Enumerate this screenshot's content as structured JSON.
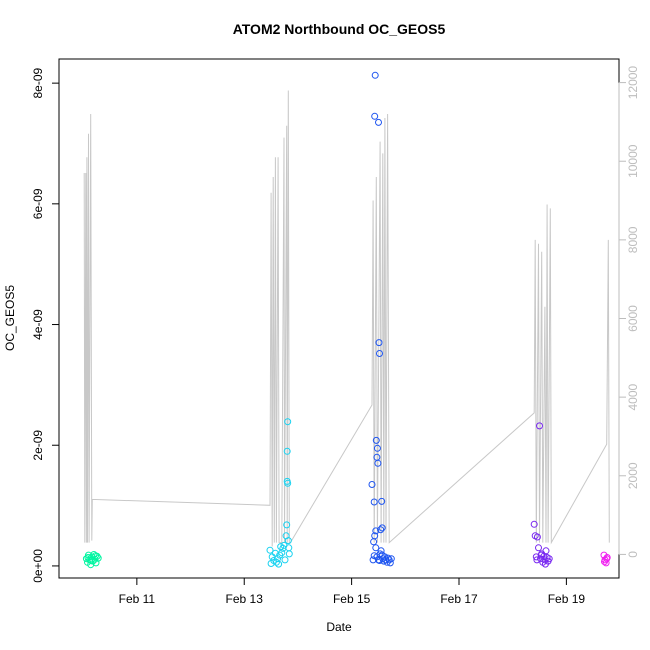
{
  "chart_data": {
    "type": "scatter",
    "title": "ATOM2 Northbound OC_GEOS5",
    "xlabel": "Date",
    "ylabel": "OC_GEOS5",
    "xlim": [
      9.55,
      19.98
    ],
    "ylim": [
      -2e-10,
      8.4e-09
    ],
    "y2lim": [
      -600,
      12600
    ],
    "x_ticks": [
      {
        "value": 11,
        "label": "Feb 11"
      },
      {
        "value": 13,
        "label": "Feb 13"
      },
      {
        "value": 15,
        "label": "Feb 15"
      },
      {
        "value": 17,
        "label": "Feb 17"
      },
      {
        "value": 19,
        "label": "Feb 19"
      }
    ],
    "y_ticks": [
      {
        "value": 0,
        "label": "0e+00"
      },
      {
        "value": 2e-09,
        "label": "2e-09"
      },
      {
        "value": 4e-09,
        "label": "4e-09"
      },
      {
        "value": 6e-09,
        "label": "6e-09"
      },
      {
        "value": 8e-09,
        "label": "8e-09"
      }
    ],
    "y2_ticks": [
      {
        "value": 0,
        "label": "0"
      },
      {
        "value": 2000,
        "label": "2000"
      },
      {
        "value": 4000,
        "label": "4000"
      },
      {
        "value": 6000,
        "label": "6000"
      },
      {
        "value": 8000,
        "label": "8000"
      },
      {
        "value": 10000,
        "label": "10000"
      },
      {
        "value": 12000,
        "label": "12000"
      }
    ],
    "colors": {
      "altitude_line": "#c8c8c8",
      "axis": "#000000",
      "right_axis": "#bdbdbd"
    },
    "points": [
      {
        "x": 10.06,
        "y": 1.2e-10,
        "c": "#00f5a0"
      },
      {
        "x": 10.08,
        "y": 6e-11,
        "c": "#00f5a0"
      },
      {
        "x": 10.1,
        "y": 1.8e-10,
        "c": "#00f5a0"
      },
      {
        "x": 10.12,
        "y": 1e-10,
        "c": "#00f5a0"
      },
      {
        "x": 10.14,
        "y": 2e-11,
        "c": "#00f5a0"
      },
      {
        "x": 10.16,
        "y": 1.5e-10,
        "c": "#00f5a0"
      },
      {
        "x": 10.18,
        "y": 8e-11,
        "c": "#00f5a0"
      },
      {
        "x": 10.2,
        "y": 1.9e-10,
        "c": "#00f5a0"
      },
      {
        "x": 10.22,
        "y": 1.1e-10,
        "c": "#00f5a0"
      },
      {
        "x": 10.24,
        "y": 5e-11,
        "c": "#00f5a0"
      },
      {
        "x": 10.26,
        "y": 1.6e-10,
        "c": "#00f5a0"
      },
      {
        "x": 10.28,
        "y": 1.3e-10,
        "c": "#00f5a0"
      },
      {
        "x": 10.09,
        "y": 1.4e-10,
        "c": "#00f5a0"
      },
      {
        "x": 10.15,
        "y": 9e-11,
        "c": "#00f5a0"
      },
      {
        "x": 10.23,
        "y": 1.7e-10,
        "c": "#00f5a0"
      },
      {
        "x": 13.48,
        "y": 2.6e-10,
        "c": "#19d2f0"
      },
      {
        "x": 13.5,
        "y": 4e-11,
        "c": "#19d2f0"
      },
      {
        "x": 13.52,
        "y": 1.5e-10,
        "c": "#19d2f0"
      },
      {
        "x": 13.55,
        "y": 9e-11,
        "c": "#19d2f0"
      },
      {
        "x": 13.58,
        "y": 2.1e-10,
        "c": "#19d2f0"
      },
      {
        "x": 13.6,
        "y": 6e-11,
        "c": "#19d2f0"
      },
      {
        "x": 13.62,
        "y": 1.2e-10,
        "c": "#19d2f0"
      },
      {
        "x": 13.64,
        "y": 3e-11,
        "c": "#19d2f0"
      },
      {
        "x": 13.66,
        "y": 1.8e-10,
        "c": "#19d2f0"
      },
      {
        "x": 13.68,
        "y": 3.2e-10,
        "c": "#19d2f0"
      },
      {
        "x": 13.7,
        "y": 2.2e-10,
        "c": "#19d2f0"
      },
      {
        "x": 13.72,
        "y": 2.9e-10,
        "c": "#19d2f0"
      },
      {
        "x": 13.74,
        "y": 3.4e-10,
        "c": "#19d2f0"
      },
      {
        "x": 13.76,
        "y": 1e-10,
        "c": "#19d2f0"
      },
      {
        "x": 13.78,
        "y": 5e-10,
        "c": "#19d2f0"
      },
      {
        "x": 13.79,
        "y": 6.8e-10,
        "c": "#19d2f0"
      },
      {
        "x": 13.8,
        "y": 1.4e-09,
        "c": "#19d2f0"
      },
      {
        "x": 13.81,
        "y": 1.37e-09,
        "c": "#19d2f0"
      },
      {
        "x": 13.8,
        "y": 1.9e-09,
        "c": "#19d2f0"
      },
      {
        "x": 13.81,
        "y": 2.39e-09,
        "c": "#19d2f0"
      },
      {
        "x": 13.82,
        "y": 4.2e-10,
        "c": "#19d2f0"
      },
      {
        "x": 13.83,
        "y": 3e-10,
        "c": "#19d2f0"
      },
      {
        "x": 13.84,
        "y": 2e-10,
        "c": "#19d2f0"
      },
      {
        "x": 15.38,
        "y": 1.35e-09,
        "c": "#1e55f0"
      },
      {
        "x": 15.4,
        "y": 1e-10,
        "c": "#1e55f0"
      },
      {
        "x": 15.41,
        "y": 4e-10,
        "c": "#1e55f0"
      },
      {
        "x": 15.42,
        "y": 1.06e-09,
        "c": "#1e55f0"
      },
      {
        "x": 15.43,
        "y": 7.45e-09,
        "c": "#1e55f0"
      },
      {
        "x": 15.44,
        "y": 8.13e-09,
        "c": "#1e55f0"
      },
      {
        "x": 15.45,
        "y": 5.8e-10,
        "c": "#1e55f0"
      },
      {
        "x": 15.46,
        "y": 2.08e-09,
        "c": "#1e55f0"
      },
      {
        "x": 15.47,
        "y": 1.8e-09,
        "c": "#1e55f0"
      },
      {
        "x": 15.48,
        "y": 1.95e-09,
        "c": "#1e55f0"
      },
      {
        "x": 15.49,
        "y": 1.7e-09,
        "c": "#1e55f0"
      },
      {
        "x": 15.5,
        "y": 7.35e-09,
        "c": "#1e55f0"
      },
      {
        "x": 15.51,
        "y": 3.7e-09,
        "c": "#1e55f0"
      },
      {
        "x": 15.52,
        "y": 3.52e-09,
        "c": "#1e55f0"
      },
      {
        "x": 15.53,
        "y": 2e-10,
        "c": "#1e55f0"
      },
      {
        "x": 15.54,
        "y": 6e-10,
        "c": "#1e55f0"
      },
      {
        "x": 15.56,
        "y": 1.07e-09,
        "c": "#1e55f0"
      },
      {
        "x": 15.57,
        "y": 6.3e-10,
        "c": "#1e55f0"
      },
      {
        "x": 15.43,
        "y": 5e-10,
        "c": "#1e55f0"
      },
      {
        "x": 15.45,
        "y": 3e-10,
        "c": "#1e55f0"
      },
      {
        "x": 15.47,
        "y": 1.5e-10,
        "c": "#1e55f0"
      },
      {
        "x": 15.5,
        "y": 1e-10,
        "c": "#1e55f0"
      },
      {
        "x": 15.55,
        "y": 2.5e-10,
        "c": "#1e55f0"
      },
      {
        "x": 15.58,
        "y": 1.2e-10,
        "c": "#1e55f0"
      },
      {
        "x": 15.6,
        "y": 8e-11,
        "c": "#1e55f0"
      },
      {
        "x": 15.62,
        "y": 1.5e-10,
        "c": "#1e55f0"
      },
      {
        "x": 15.64,
        "y": 1e-10,
        "c": "#1e55f0"
      },
      {
        "x": 15.66,
        "y": 6e-11,
        "c": "#1e55f0"
      },
      {
        "x": 15.68,
        "y": 1.3e-10,
        "c": "#1e55f0"
      },
      {
        "x": 15.7,
        "y": 1e-10,
        "c": "#1e55f0"
      },
      {
        "x": 15.72,
        "y": 5e-11,
        "c": "#1e55f0"
      },
      {
        "x": 15.74,
        "y": 1.2e-10,
        "c": "#1e55f0"
      },
      {
        "x": 15.42,
        "y": 1.7e-10,
        "c": "#1e55f0"
      },
      {
        "x": 15.52,
        "y": 9e-11,
        "c": "#1e55f0"
      },
      {
        "x": 15.57,
        "y": 1.8e-10,
        "c": "#1e55f0"
      },
      {
        "x": 18.4,
        "y": 6.9e-10,
        "c": "#7828f0"
      },
      {
        "x": 18.42,
        "y": 5e-10,
        "c": "#7828f0"
      },
      {
        "x": 18.44,
        "y": 1.5e-10,
        "c": "#7828f0"
      },
      {
        "x": 18.46,
        "y": 4.8e-10,
        "c": "#7828f0"
      },
      {
        "x": 18.48,
        "y": 3e-10,
        "c": "#7828f0"
      },
      {
        "x": 18.5,
        "y": 2.32e-09,
        "c": "#7828f0"
      },
      {
        "x": 18.52,
        "y": 1.2e-10,
        "c": "#7828f0"
      },
      {
        "x": 18.54,
        "y": 2e-10,
        "c": "#7828f0"
      },
      {
        "x": 18.56,
        "y": 6e-11,
        "c": "#7828f0"
      },
      {
        "x": 18.58,
        "y": 1.6e-10,
        "c": "#7828f0"
      },
      {
        "x": 18.6,
        "y": 1e-10,
        "c": "#7828f0"
      },
      {
        "x": 18.62,
        "y": 2.5e-10,
        "c": "#7828f0"
      },
      {
        "x": 18.64,
        "y": 1.4e-10,
        "c": "#7828f0"
      },
      {
        "x": 18.66,
        "y": 8e-11,
        "c": "#7828f0"
      },
      {
        "x": 18.68,
        "y": 1.2e-10,
        "c": "#7828f0"
      },
      {
        "x": 18.45,
        "y": 1e-10,
        "c": "#7828f0"
      },
      {
        "x": 18.53,
        "y": 1.8e-10,
        "c": "#7828f0"
      },
      {
        "x": 18.61,
        "y": 3e-11,
        "c": "#7828f0"
      },
      {
        "x": 19.7,
        "y": 1.8e-10,
        "c": "#f01ef0"
      },
      {
        "x": 19.72,
        "y": 1e-10,
        "c": "#f01ef0"
      },
      {
        "x": 19.74,
        "y": 5e-11,
        "c": "#f01ef0"
      },
      {
        "x": 19.76,
        "y": 1.4e-10,
        "c": "#f01ef0"
      },
      {
        "x": 19.71,
        "y": 7e-11,
        "c": "#f01ef0"
      },
      {
        "x": 19.75,
        "y": 1.2e-10,
        "c": "#f01ef0"
      }
    ],
    "altitude": [
      [
        10.02,
        9700
      ],
      [
        10.03,
        300
      ],
      [
        10.05,
        9700
      ],
      [
        10.06,
        300
      ],
      [
        10.07,
        10100
      ],
      [
        10.08,
        300
      ],
      [
        10.1,
        10700
      ],
      [
        10.11,
        300
      ],
      [
        10.14,
        11200
      ],
      [
        10.16,
        350
      ],
      [
        10.17,
        1400
      ],
      [
        13.48,
        1250
      ],
      [
        13.5,
        9200
      ],
      [
        13.52,
        200
      ],
      [
        13.54,
        9600
      ],
      [
        13.56,
        300
      ],
      [
        13.58,
        10100
      ],
      [
        13.6,
        300
      ],
      [
        13.63,
        10100
      ],
      [
        13.65,
        300
      ],
      [
        13.7,
        300
      ],
      [
        13.74,
        10600
      ],
      [
        13.75,
        300
      ],
      [
        13.79,
        10900
      ],
      [
        13.8,
        300
      ],
      [
        13.82,
        11800
      ],
      [
        13.84,
        300
      ],
      [
        13.86,
        300
      ],
      [
        15.38,
        3800
      ],
      [
        15.4,
        9000
      ],
      [
        15.42,
        300
      ],
      [
        15.46,
        9600
      ],
      [
        15.48,
        300
      ],
      [
        15.53,
        10500
      ],
      [
        15.55,
        300
      ],
      [
        15.58,
        10200
      ],
      [
        15.6,
        300
      ],
      [
        15.62,
        11100
      ],
      [
        15.64,
        300
      ],
      [
        15.67,
        11200
      ],
      [
        15.7,
        300
      ],
      [
        18.4,
        3600
      ],
      [
        18.42,
        8000
      ],
      [
        18.44,
        300
      ],
      [
        18.48,
        7900
      ],
      [
        18.5,
        300
      ],
      [
        18.54,
        7700
      ],
      [
        18.56,
        300
      ],
      [
        18.6,
        6300
      ],
      [
        18.62,
        300
      ],
      [
        18.64,
        8900
      ],
      [
        18.66,
        300
      ],
      [
        18.7,
        8800
      ],
      [
        18.72,
        300
      ],
      [
        19.75,
        2800
      ],
      [
        19.78,
        8000
      ],
      [
        19.8,
        300
      ]
    ]
  }
}
